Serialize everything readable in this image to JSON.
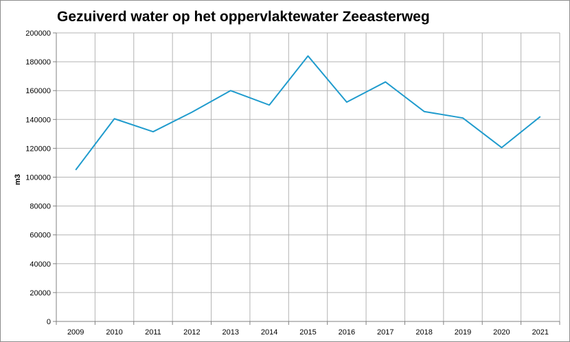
{
  "chart_data": {
    "type": "line",
    "title": "Gezuiverd water op het oppervlaktewater Zeeasterweg",
    "xlabel": "",
    "ylabel": "m3",
    "categories": [
      "2009",
      "2010",
      "2011",
      "2012",
      "2013",
      "2014",
      "2015",
      "2016",
      "2017",
      "2018",
      "2019",
      "2020",
      "2021"
    ],
    "series": [
      {
        "values": [
          105000,
          140500,
          131500,
          145000,
          160000,
          150000,
          184000,
          152000,
          166000,
          145500,
          141000,
          120500,
          142000
        ]
      }
    ],
    "ylim": [
      0,
      200000
    ],
    "yticks": [
      "0",
      "20000",
      "40000",
      "60000",
      "80000",
      "100000",
      "120000",
      "140000",
      "160000",
      "180000",
      "200000"
    ],
    "grid": true,
    "legend": "none",
    "line_color": "#1f9bcd",
    "grid_color": "#b3b3b3"
  }
}
